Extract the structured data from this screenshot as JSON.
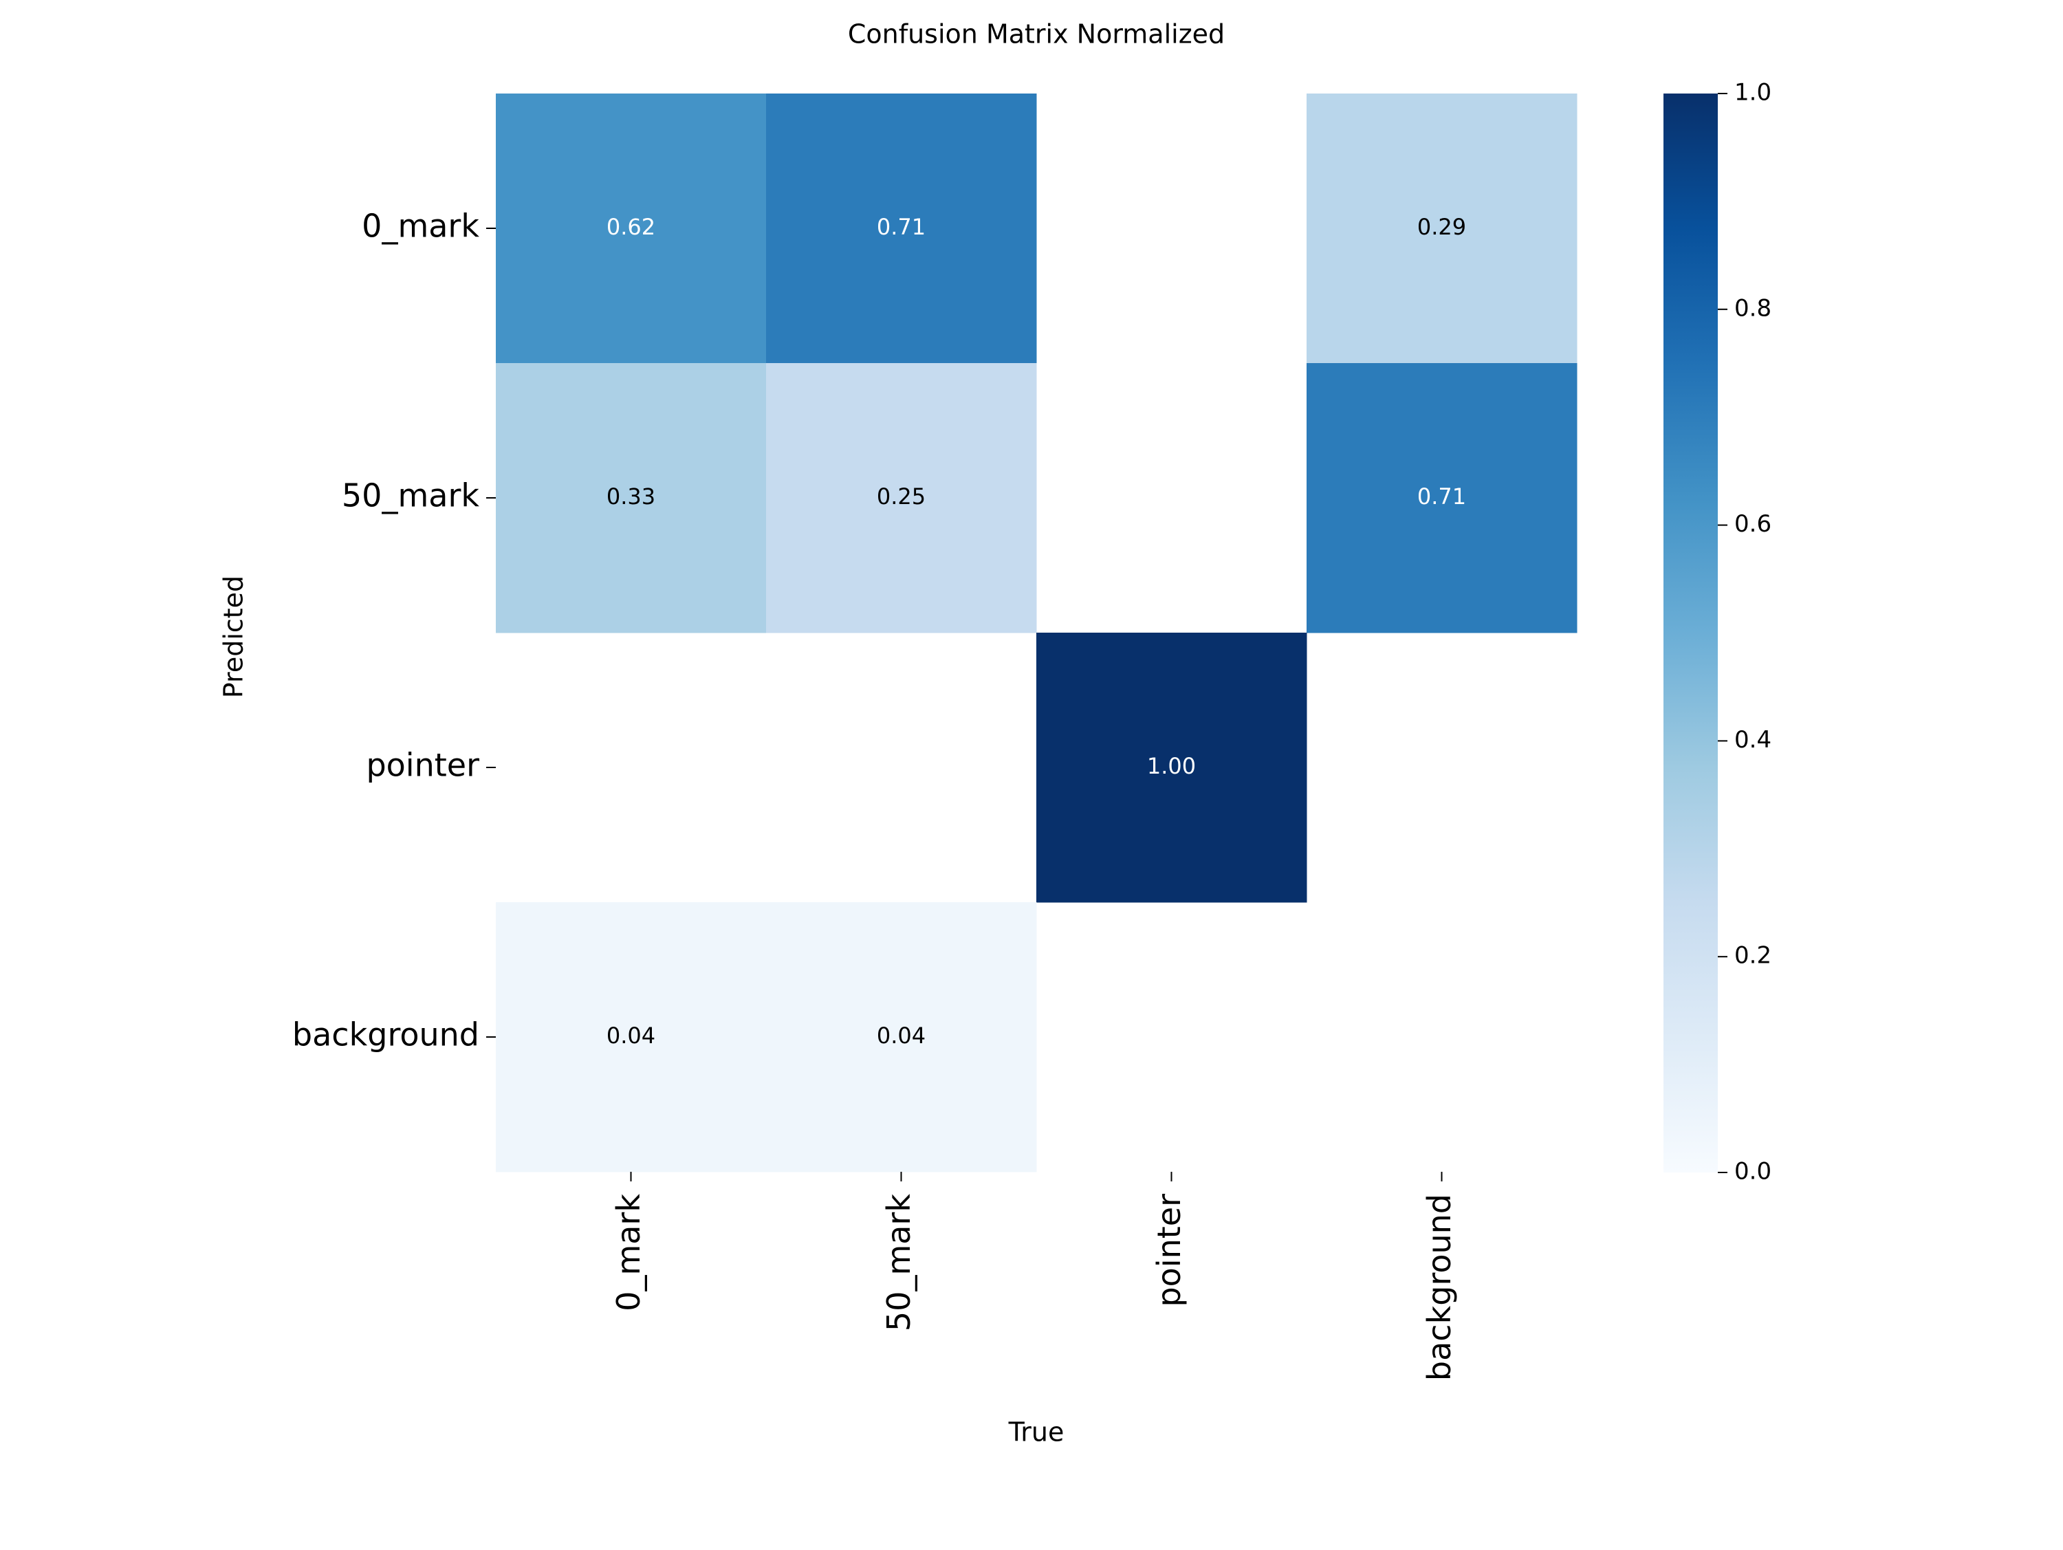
{
  "chart_data": {
    "type": "heatmap",
    "title": "Confusion Matrix Normalized",
    "xlabel": "True",
    "ylabel": "Predicted",
    "x_categories": [
      "0_mark",
      "50_mark",
      "pointer",
      "background"
    ],
    "y_categories": [
      "0_mark",
      "50_mark",
      "pointer",
      "background"
    ],
    "values": [
      [
        0.62,
        0.71,
        null,
        0.29
      ],
      [
        0.33,
        0.25,
        null,
        0.71
      ],
      [
        null,
        null,
        1.0,
        null
      ],
      [
        0.04,
        0.04,
        null,
        null
      ]
    ],
    "annotation_format": "0.00",
    "colormap": "Blues",
    "colormap_stops": [
      "#f7fbff",
      "#deebf7",
      "#c6dbef",
      "#9ecae1",
      "#6baed6",
      "#4292c6",
      "#2171b5",
      "#08519c",
      "#08306b"
    ],
    "colorbar": {
      "range": [
        0.0,
        1.0
      ],
      "ticks": [
        "0.0",
        "0.2",
        "0.4",
        "0.6",
        "0.8",
        "1.0"
      ]
    },
    "empty_cells": "blank"
  }
}
